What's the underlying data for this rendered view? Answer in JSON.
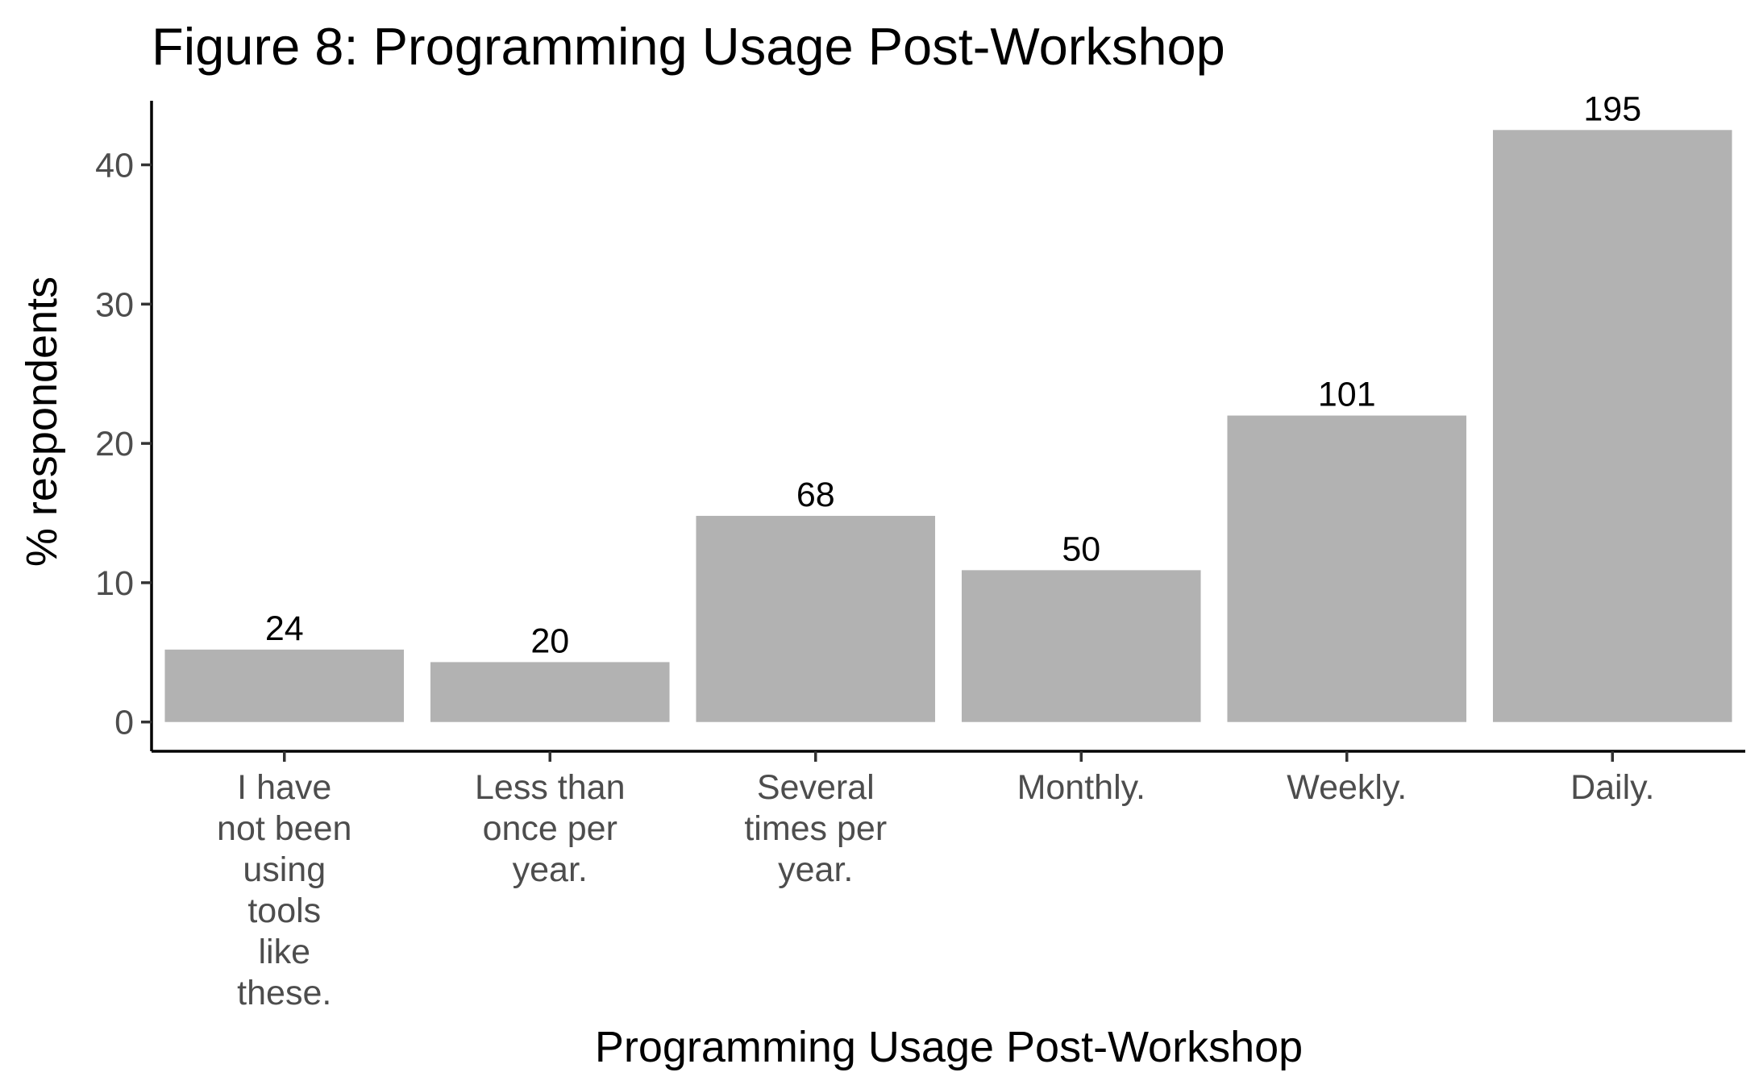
{
  "chart_data": {
    "type": "bar",
    "title": "Figure 8: Programming Usage Post-Workshop",
    "xlabel": "Programming Usage Post-Workshop",
    "ylabel": "% respondents",
    "categories": [
      [
        "I have",
        "not been",
        "using",
        "tools",
        "like",
        "these."
      ],
      [
        "Less than",
        "once per",
        "year."
      ],
      [
        "Several",
        "times per",
        "year."
      ],
      [
        "Monthly."
      ],
      [
        "Weekly."
      ],
      [
        "Daily."
      ]
    ],
    "values": [
      5.2,
      4.3,
      14.8,
      10.9,
      22.0,
      42.5
    ],
    "data_labels": [
      "24",
      "20",
      "68",
      "50",
      "101",
      "195"
    ],
    "yticks": [
      0,
      10,
      20,
      30,
      40
    ],
    "ylim": [
      -2.1,
      44.6
    ],
    "grid": false,
    "legend": "none",
    "colors": {
      "bar": "#b2b2b2",
      "axis": "#000000",
      "tick_text": "#4d4d4d"
    }
  }
}
